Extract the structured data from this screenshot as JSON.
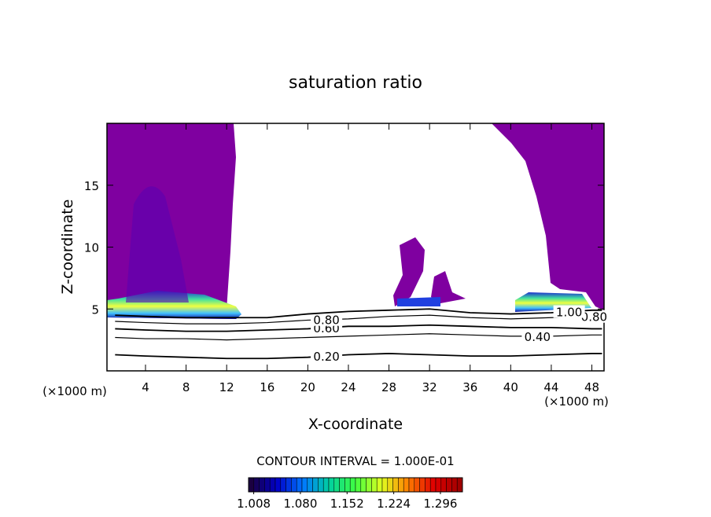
{
  "chart_data": {
    "type": "contour",
    "title": "saturation ratio",
    "x_label": "X-coordinate",
    "y_label": "Z-coordinate",
    "x_unit": "(×1000 m)",
    "note": "CONTOUR INTERVAL = 1.000E-01",
    "xlim": [
      0.2,
      49.2
    ],
    "ylim": [
      0,
      20
    ],
    "xticks": [
      4,
      8,
      12,
      16,
      20,
      24,
      28,
      32,
      36,
      40,
      44,
      48
    ],
    "yticks": [
      5,
      10,
      15
    ],
    "x": [
      1,
      4,
      8,
      12,
      16,
      20,
      24,
      28,
      32,
      36,
      40,
      44,
      48,
      49
    ],
    "series": [
      {
        "name": "0.20",
        "values": [
          1.3,
          1.2,
          1.1,
          1.0,
          1.0,
          1.1,
          1.3,
          1.4,
          1.3,
          1.2,
          1.2,
          1.3,
          1.4,
          1.4
        ]
      },
      {
        "name": "0.40",
        "values": [
          2.7,
          2.6,
          2.6,
          2.5,
          2.6,
          2.7,
          2.8,
          2.9,
          3.0,
          2.9,
          2.8,
          2.8,
          2.9,
          2.9
        ]
      },
      {
        "name": "0.60",
        "values": [
          3.4,
          3.3,
          3.2,
          3.2,
          3.3,
          3.4,
          3.6,
          3.6,
          3.7,
          3.6,
          3.5,
          3.5,
          3.4,
          3.4
        ]
      },
      {
        "name": "0.80",
        "values": [
          4.0,
          3.9,
          3.8,
          3.8,
          3.9,
          4.1,
          4.2,
          4.4,
          4.5,
          4.3,
          4.2,
          4.3,
          4.4,
          4.4
        ]
      },
      {
        "name": "1.00",
        "values": [
          4.5,
          4.4,
          4.3,
          4.3,
          4.3,
          4.6,
          4.8,
          4.9,
          5.0,
          4.7,
          4.6,
          4.7,
          4.9,
          4.9
        ]
      }
    ],
    "colorbar": {
      "range": [
        1.0,
        1.33
      ],
      "colors": [
        "#1a0040",
        "#0000c8",
        "#0078ff",
        "#00d0a0",
        "#40ff40",
        "#e0ff20",
        "#ff8000",
        "#e00000",
        "#a00000"
      ],
      "ticks": [
        {
          "value": 1.008,
          "label": "1.008"
        },
        {
          "value": 1.08,
          "label": "1.080"
        },
        {
          "value": 1.152,
          "label": "1.152"
        },
        {
          "value": 1.224,
          "label": "1.224"
        },
        {
          "value": 1.296,
          "label": "1.296"
        }
      ]
    }
  }
}
